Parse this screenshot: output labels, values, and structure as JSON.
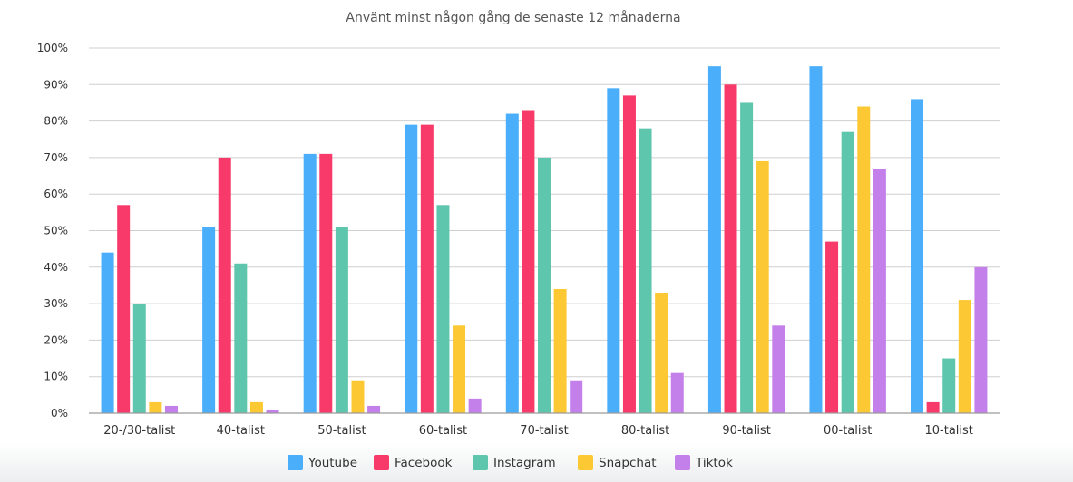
{
  "chart_data": {
    "type": "bar",
    "title": "Använt minst någon gång de senaste 12 månaderna",
    "xlabel": "",
    "ylabel": "",
    "ylim": [
      0,
      100
    ],
    "yticks": [
      "0%",
      "10%",
      "20%",
      "30%",
      "40%",
      "50%",
      "60%",
      "70%",
      "80%",
      "90%",
      "100%"
    ],
    "grid": true,
    "legend_position": "bottom",
    "categories": [
      "20-/30-talist",
      "40-talist",
      "50-talist",
      "60-talist",
      "70-talist",
      "80-talist",
      "90-talist",
      "00-talist",
      "10-talist"
    ],
    "series": [
      {
        "name": "Youtube",
        "color": "#4aaefb",
        "values": [
          44,
          51,
          71,
          79,
          82,
          89,
          95,
          95,
          86
        ]
      },
      {
        "name": "Facebook",
        "color": "#f83a6a",
        "values": [
          57,
          70,
          71,
          79,
          83,
          87,
          90,
          47,
          3
        ]
      },
      {
        "name": "Instagram",
        "color": "#5ec6ad",
        "values": [
          30,
          41,
          51,
          57,
          70,
          78,
          85,
          77,
          15
        ]
      },
      {
        "name": "Snapchat",
        "color": "#fcc935",
        "values": [
          3,
          3,
          9,
          24,
          34,
          33,
          69,
          84,
          31
        ]
      },
      {
        "name": "Tiktok",
        "color": "#c480ea",
        "values": [
          2,
          1,
          2,
          4,
          9,
          11,
          24,
          67,
          40
        ]
      }
    ]
  }
}
